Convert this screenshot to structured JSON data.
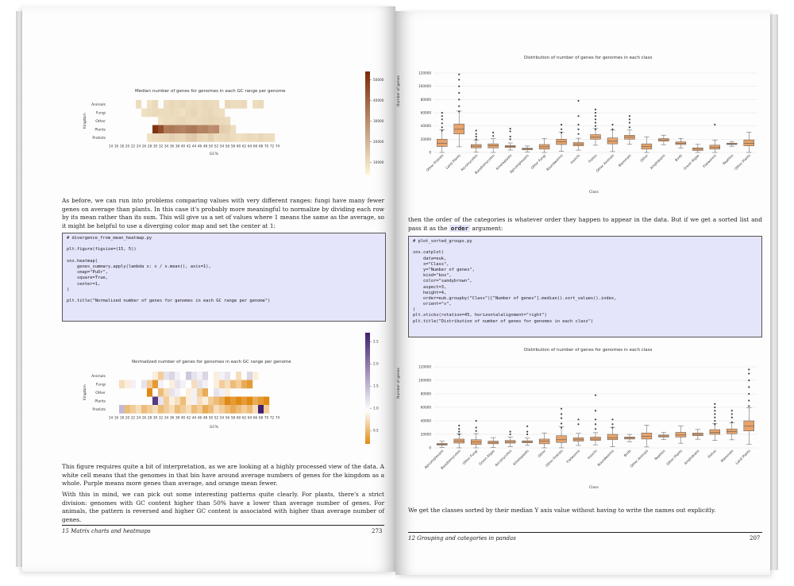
{
  "left_page": {
    "heatmap1": {
      "title": "Median number of genes for genomes in each GC range per genome",
      "xlabel": "GC%",
      "ylabel": "Kingdom",
      "rows": [
        "Animals",
        "Fungi",
        "Other",
        "Plants",
        "Protists"
      ],
      "xticks": [
        "14",
        "16",
        "18",
        "20",
        "22",
        "24",
        "26",
        "28",
        "30",
        "32",
        "34",
        "36",
        "38",
        "40",
        "42",
        "44",
        "46",
        "48",
        "50",
        "52",
        "54",
        "56",
        "58",
        "60",
        "62",
        "64",
        "66",
        "68",
        "70",
        "72",
        "74"
      ],
      "colorbar_ticks": [
        "50000",
        "40000",
        "30000",
        "20000",
        "10000"
      ],
      "cmap": [
        "#fdf5d8",
        "#7a2a06"
      ],
      "values": [
        [
          0,
          0,
          0,
          0,
          0,
          0.12,
          0,
          0.1,
          0.14,
          0,
          0.12,
          0.15,
          0.14,
          0.15,
          0.12,
          0.14,
          0.13,
          0.15,
          0.14,
          0.13,
          0,
          0.15,
          0.12,
          0.13,
          0.14,
          0,
          0.12,
          0.14,
          0,
          0,
          0
        ],
        [
          0,
          0,
          0,
          0,
          0,
          0,
          0.1,
          0.12,
          0.14,
          0.13,
          0.12,
          0.14,
          0.12,
          0.1,
          0.14,
          0.16,
          0.12,
          0.14,
          0.15,
          0.12,
          0.11,
          0,
          0,
          0,
          0,
          0,
          0,
          0,
          0,
          0,
          0
        ],
        [
          0,
          0,
          0,
          0,
          0,
          0,
          0,
          0,
          0,
          0.1,
          0.12,
          0.12,
          0.14,
          0.15,
          0.13,
          0.12,
          0.14,
          0.15,
          0.16,
          0.15,
          0.14,
          0.12,
          0,
          0,
          0,
          0,
          0,
          0,
          0,
          0,
          0
        ],
        [
          0,
          0,
          0,
          0,
          0,
          0,
          0,
          0,
          0.95,
          0.82,
          0.6,
          0.62,
          0.58,
          0.56,
          0.6,
          0.62,
          0.55,
          0.56,
          0.5,
          0.52,
          0.2,
          0.18,
          0.12,
          0,
          0,
          0,
          0,
          0,
          0,
          0,
          0
        ],
        [
          0,
          0,
          0,
          0,
          0,
          0,
          0,
          0.1,
          0.12,
          0.14,
          0.15,
          0.18,
          0.16,
          0.15,
          0.2,
          0.22,
          0.16,
          0.14,
          0.18,
          0.12,
          0.14,
          0.15,
          0.12,
          0.1,
          0.12,
          0.14,
          0.12,
          0.15,
          0.13,
          0.12,
          0
        ]
      ]
    },
    "para1": "As before, we can run into problems comparing values with very different ranges: fungi have many fewer genes on average than plants. In this case it's probably more meaningful to normalize by dividing each row by its mean rather than its sum. This will give us a set of values where 1 means the same as the average, so it might be helpful to use a diverging color map and set the center at 1:",
    "code": [
      "# divergence_from_mean_heatmap.py",
      "",
      "plt.figure(figsize=(15, 5))",
      "",
      "sns.heatmap(",
      "    genes_summary.apply(lambda x: x / x.mean(), axis=1),",
      "    cmap=\"PuOr\",",
      "    square=True,",
      "    center=1,",
      ")",
      "",
      "plt.title(\"Normalized number of genes for genomes in each GC range per genome\")"
    ],
    "heatmap2": {
      "title": "Normalized number of genes for genomes in each GC range per genome",
      "xlabel": "GC%",
      "ylabel": "Kingdom",
      "rows": [
        "Animals",
        "Fungi",
        "Other",
        "Plants",
        "Protists"
      ],
      "xticks": [
        "14",
        "16",
        "18",
        "20",
        "22",
        "24",
        "26",
        "28",
        "30",
        "32",
        "34",
        "36",
        "38",
        "40",
        "42",
        "44",
        "46",
        "48",
        "50",
        "52",
        "54",
        "56",
        "58",
        "60",
        "62",
        "64",
        "66",
        "68",
        "70",
        "72",
        "74"
      ],
      "colorbar_ticks": [
        "2.5",
        "2.0",
        "1.5",
        "1.0",
        "0.5"
      ],
      "cmap": [
        "#e08a14",
        "#ffffff",
        "#3f1f6e"
      ],
      "values": [
        [
          0,
          0,
          0,
          0,
          0,
          0,
          0,
          0,
          0.9,
          0.7,
          1.2,
          1.3,
          1.1,
          1.0,
          1.4,
          1.2,
          1.1,
          1.3,
          1.0,
          0.9,
          1.1,
          1.2,
          1.0,
          0.8,
          1.0,
          1.3,
          0.9,
          0,
          0,
          0,
          0
        ],
        [
          0,
          0,
          0.8,
          0.9,
          1.1,
          1.0,
          1.2,
          0.7,
          0.4,
          1.1,
          1.0,
          0.9,
          1.2,
          1.1,
          1.0,
          0.8,
          1.2,
          1.1,
          1.0,
          0.9,
          0.7,
          0.8,
          0.6,
          0.7,
          0.5,
          0.4,
          0,
          0,
          0,
          0,
          0
        ],
        [
          0,
          0,
          0,
          0,
          0,
          0,
          0,
          0.3,
          1.0,
          0.6,
          0.8,
          1.2,
          1.1,
          1.0,
          0.9,
          1.1,
          0.7,
          0.5,
          1.0,
          1.2,
          1.1,
          0.9,
          0,
          0,
          0,
          0,
          0,
          0,
          0,
          0,
          0
        ],
        [
          0,
          0,
          0,
          0,
          0,
          0,
          0,
          0,
          2.4,
          1.2,
          0.7,
          0.9,
          0.8,
          0.6,
          0.9,
          1.1,
          0.8,
          0.9,
          0.7,
          0.6,
          0.5,
          0.3,
          0.4,
          0.3,
          0.4,
          0.3,
          0.5,
          0.4,
          0.3,
          0,
          0
        ],
        [
          0,
          0,
          1.5,
          0.6,
          0.7,
          0.8,
          0.6,
          0.7,
          0.8,
          0.6,
          0.7,
          0.8,
          0.6,
          0.7,
          0.8,
          0.6,
          0.7,
          0.5,
          0.6,
          0.8,
          0.7,
          0.6,
          0.5,
          0.6,
          0.7,
          0.6,
          0.8,
          2.6,
          0.7,
          0,
          0
        ]
      ]
    },
    "para2": "This figure requires quite a bit of interpretation, as we are looking at a highly processed view of the data. A white cell means that the genomes in that bin have around average numbers of genes for the kingdom as a whole. Purple means more genes than average, and orange mean fewer.",
    "para3": "With this in mind, we can pick out some interesting patterns quite clearly. For plants, there's a strict division: genomes with GC content higher than 50% have a lower than average number of genes. For animals, the pattern is reversed and higher GC content is associated with higher than average number of genes.",
    "footer_title": "15 Matrix charts and heatmaps",
    "footer_page": "273"
  },
  "right_page": {
    "boxplot1": {
      "title": "Distribution of number of genes for genomes in each class",
      "xlabel": "Class",
      "ylabel": "Number of genes",
      "yticks": [
        "120000",
        "100000",
        "80000",
        "60000",
        "40000",
        "20000",
        "0"
      ],
      "ylim": [
        0,
        120000
      ],
      "categories": [
        "Other Protists",
        "Land Plants",
        "Ascomycetes",
        "Basidiomycetes",
        "Kinetoplasts",
        "Apicomplexans",
        "Other Fungi",
        "Roundworms",
        "Insects",
        "Fishes",
        "Other Animals",
        "Mammals",
        "Other",
        "Amphibians",
        "Birds",
        "Green Algae",
        "Flatworms",
        "Reptiles",
        "Other Plants"
      ],
      "box": [
        [
          9000,
          14000,
          20000
        ],
        [
          28000,
          35000,
          43000
        ],
        [
          7000,
          9500,
          12000
        ],
        [
          7000,
          10000,
          13000
        ],
        [
          7500,
          9000,
          10500
        ],
        [
          4000,
          5500,
          6500
        ],
        [
          5000,
          8500,
          12000
        ],
        [
          12000,
          16000,
          20000
        ],
        [
          10000,
          12500,
          15000
        ],
        [
          20000,
          23000,
          27000
        ],
        [
          13000,
          17000,
          22000
        ],
        [
          20000,
          23000,
          26000
        ],
        [
          5000,
          9000,
          13000
        ],
        [
          17000,
          19000,
          21000
        ],
        [
          12000,
          14000,
          16000
        ],
        [
          3000,
          5000,
          7000
        ],
        [
          5000,
          7500,
          11000
        ],
        [
          12000,
          13000,
          14000
        ],
        [
          10000,
          14000,
          19000
        ]
      ],
      "box_color": "#e8a46c"
    },
    "para1_pre": "then the order of the categories is whatever order they happen to appear in the data. But if we get a sorted list and pass it as the ",
    "para1_code": "order",
    "para1_post": " argument:",
    "code": [
      "# plot_sorted_groups.py",
      "",
      "sns.catplot(",
      "    data=euk,",
      "    x=\"Class\",",
      "    y=\"Number of genes\",",
      "    kind=\"box\",",
      "    color=\"sandybrown\",",
      "    aspect=3,",
      "    height=4,",
      "    order=euk.groupby(\"Class\")[\"Number of genes\"].median().sort_values().index,",
      "    orient=\"v\",",
      ")",
      "plt.xticks(rotation=45, horizontalalignment=\"right\")",
      "plt.title(\"Distribution of number of genes for genomes in each class\")"
    ],
    "boxplot2": {
      "title": "Distribution of number of genes for genomes in each class",
      "xlabel": "Class",
      "ylabel": "Number of genes",
      "yticks": [
        "120000",
        "100000",
        "80000",
        "60000",
        "40000",
        "20000",
        "0"
      ],
      "ylim": [
        0,
        120000
      ],
      "categories": [
        "Apicomplexans",
        "Basidiomycetes",
        "Other Fungi",
        "Green Algae",
        "Ascomycetes",
        "Kinetoplasts",
        "Other",
        "Other Protists",
        "Flatworms",
        "Insects",
        "Roundworms",
        "Birds",
        "Other Animals",
        "Reptiles",
        "Other Plants",
        "Amphibians",
        "Fishes",
        "Mammals",
        "Land Plants"
      ],
      "box": [
        [
          4000,
          5500,
          6500
        ],
        [
          7000,
          10000,
          13000
        ],
        [
          5000,
          8500,
          12000
        ],
        [
          6000,
          8000,
          10000
        ],
        [
          7000,
          9000,
          11000
        ],
        [
          7500,
          9000,
          10500
        ],
        [
          6000,
          10000,
          13000
        ],
        [
          8000,
          12000,
          18000
        ],
        [
          10000,
          12000,
          15000
        ],
        [
          11000,
          13000,
          16000
        ],
        [
          12000,
          15000,
          20000
        ],
        [
          13000,
          14500,
          16000
        ],
        [
          13000,
          17000,
          22000
        ],
        [
          16000,
          17500,
          19000
        ],
        [
          16000,
          19000,
          23000
        ],
        [
          18000,
          20000,
          22000
        ],
        [
          20000,
          23000,
          27000
        ],
        [
          21000,
          24000,
          28000
        ],
        [
          25000,
          32000,
          40000
        ]
      ],
      "box_color": "#e8a46c"
    },
    "para2": "We get the classes sorted by their median Y axis value without having to write the names out explicitly.",
    "footer_title": "12 Grouping and categories in pandas",
    "footer_page": "207"
  }
}
